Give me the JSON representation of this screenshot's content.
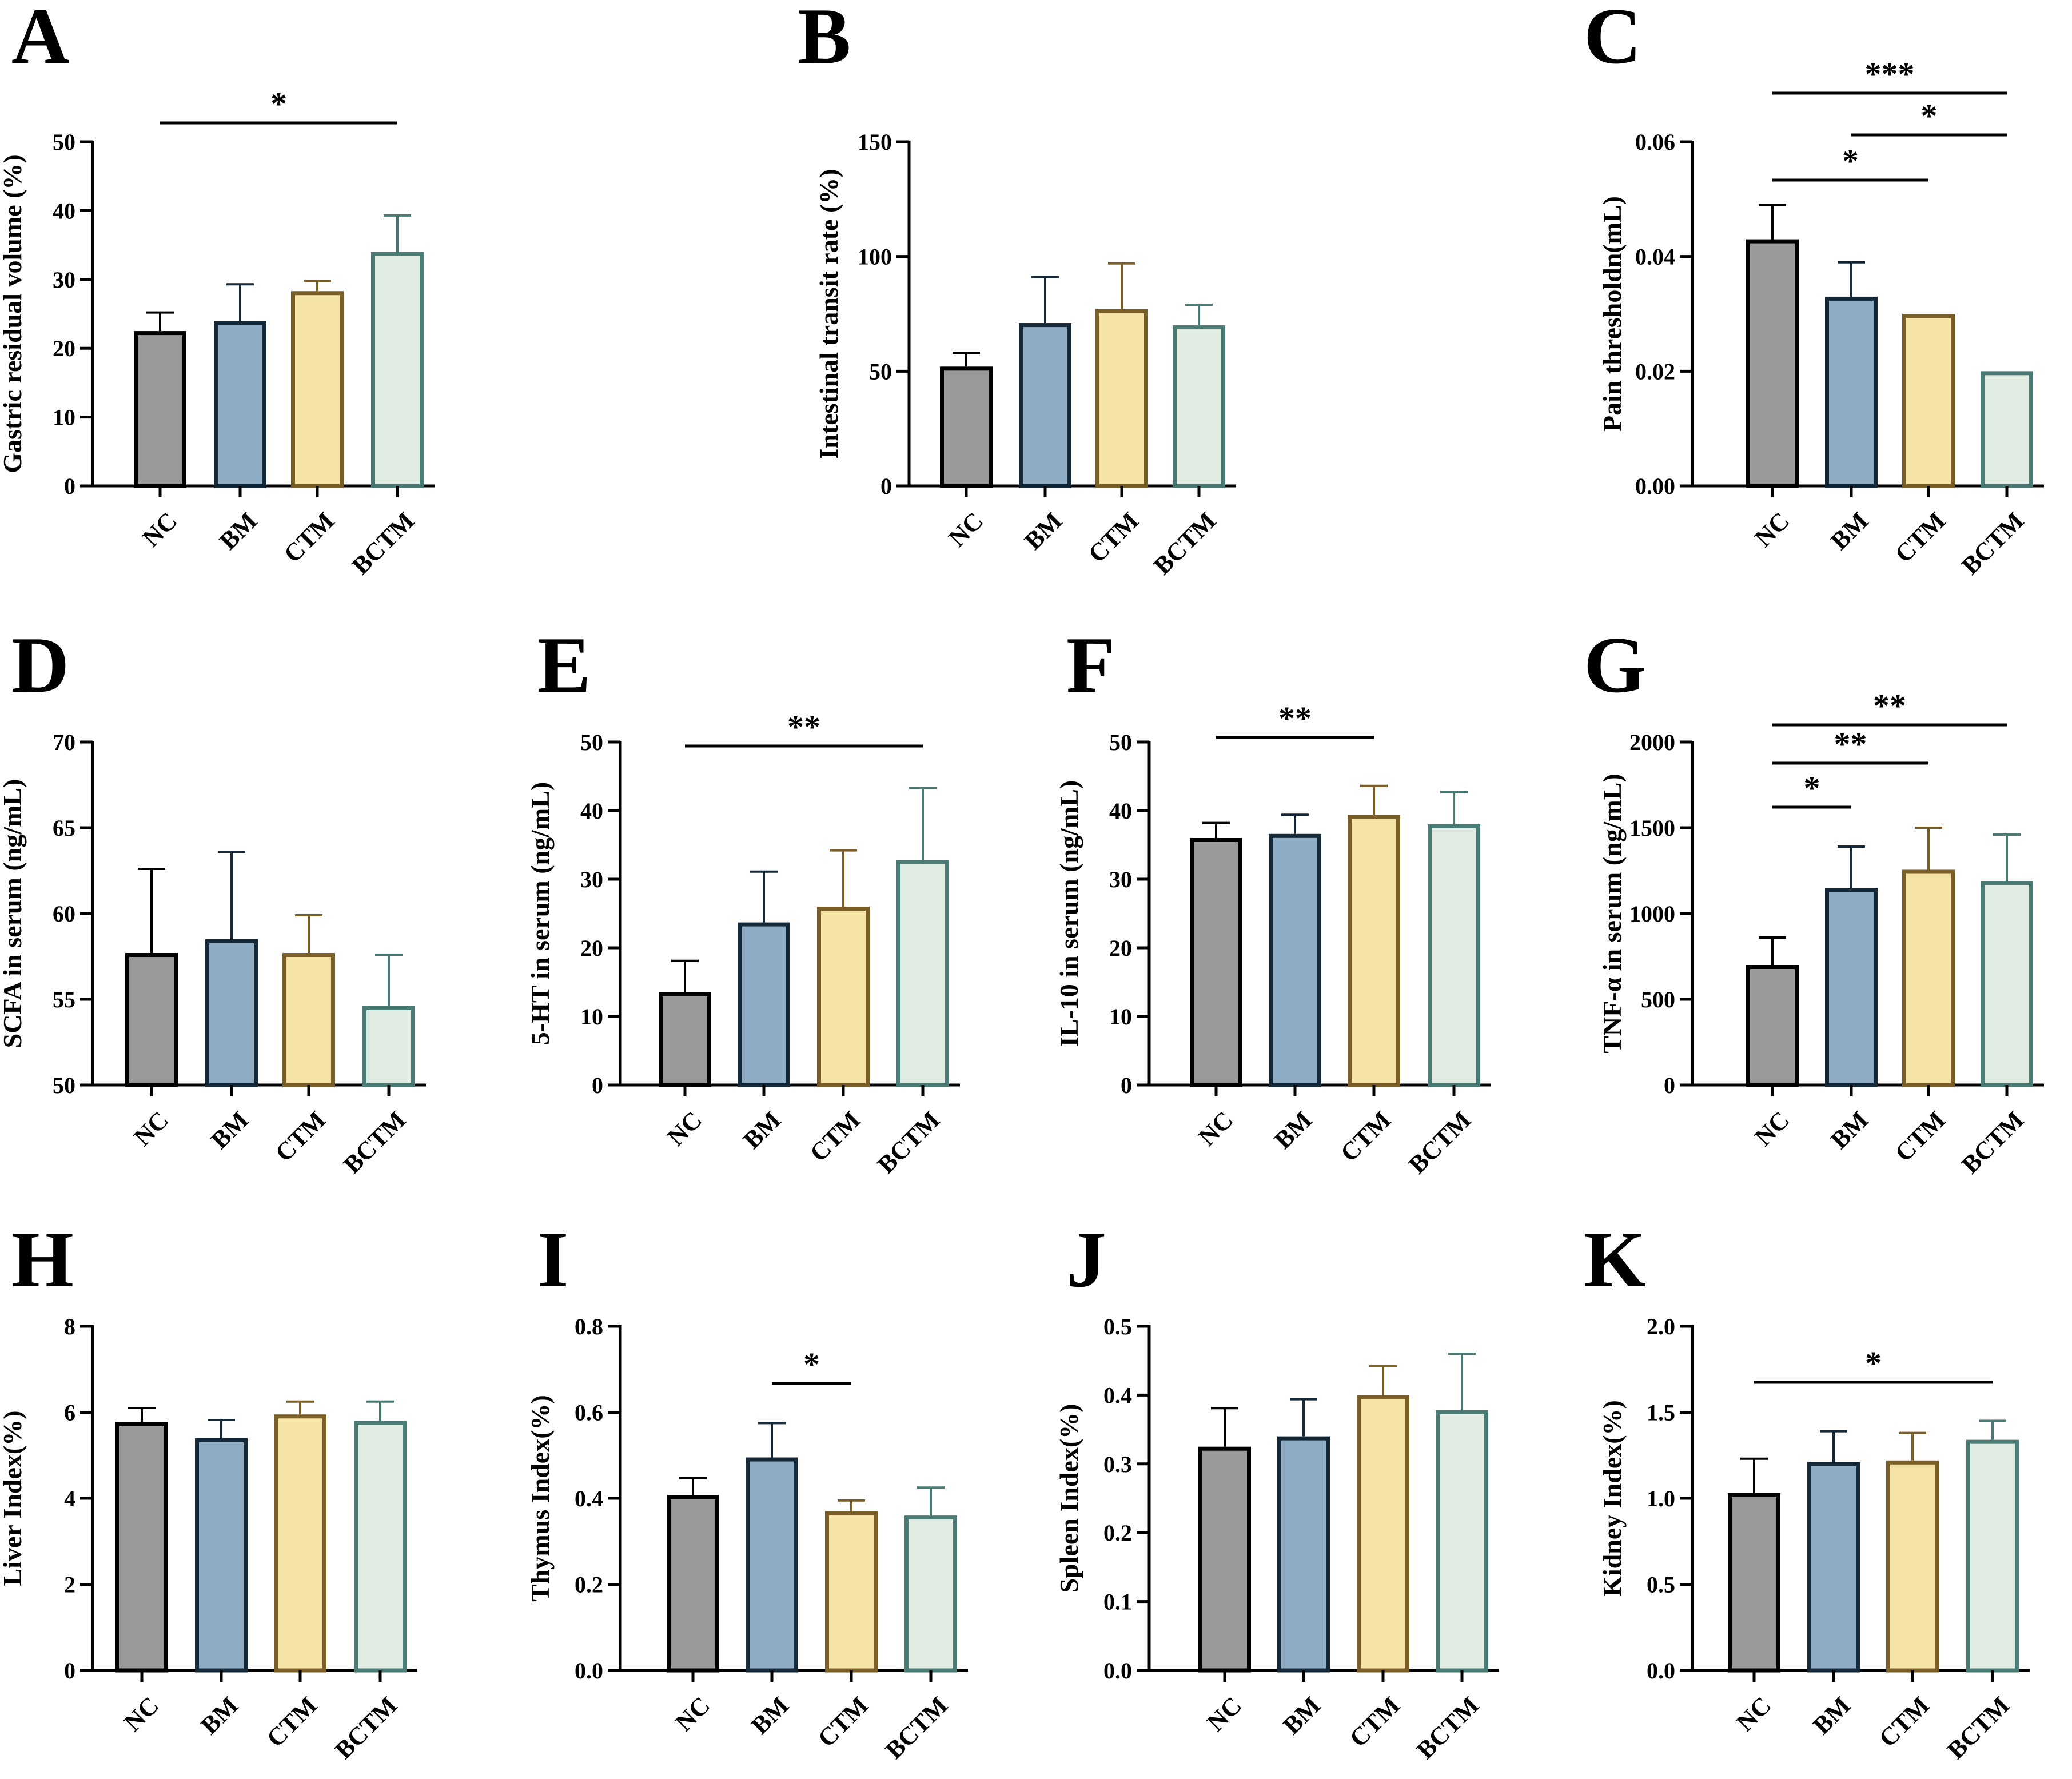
{
  "colors": {
    "fills": [
      "#999999",
      "#8eacc4",
      "#f6e3a6",
      "#e1ede3"
    ],
    "strokes": [
      "#000000",
      "#142838",
      "#7a5e28",
      "#4a7a74"
    ]
  },
  "chart_data": [
    {
      "panel": "A",
      "type": "bar",
      "title": "",
      "ylabel": "Gastric residual volume (%)",
      "categories": [
        "NC",
        "BM",
        "CTM",
        "BCTM"
      ],
      "values": [
        22.5,
        24,
        28.3,
        34
      ],
      "errors": [
        2.7,
        5.3,
        1.5,
        5.3
      ],
      "ylim": [
        0,
        50
      ],
      "yticks": [
        "0",
        "10",
        "20",
        "30",
        "40",
        "50"
      ],
      "significance": [
        {
          "from": 0,
          "to": 3,
          "label": "*"
        }
      ]
    },
    {
      "panel": "B",
      "type": "bar",
      "title": "",
      "ylabel": "Intestinal transit rate (%)",
      "categories": [
        "NC",
        "BM",
        "CTM",
        "BCTM"
      ],
      "values": [
        52,
        71,
        77,
        70
      ],
      "errors": [
        6,
        20,
        20,
        9
      ],
      "ylim": [
        0,
        150
      ],
      "yticks": [
        "0",
        "50",
        "100",
        "150"
      ],
      "significance": []
    },
    {
      "panel": "C",
      "type": "bar",
      "title": "",
      "ylabel": "Pain thresholdn(mL)",
      "categories": [
        "NC",
        "BM",
        "CTM",
        "BCTM"
      ],
      "values": [
        0.043,
        0.033,
        0.03,
        0.02
      ],
      "errors": [
        0.006,
        0.006,
        0,
        0
      ],
      "ylim": [
        0,
        0.06
      ],
      "yticks": [
        "0.00",
        "0.02",
        "0.04",
        "0.06"
      ],
      "significance": [
        {
          "from": 0,
          "to": 3,
          "label": "***"
        },
        {
          "from": 1,
          "to": 3,
          "label": "*"
        },
        {
          "from": 0,
          "to": 2,
          "label": "*"
        }
      ]
    },
    {
      "panel": "D",
      "type": "bar",
      "title": "",
      "ylabel": "SCFA in serum (ng/mL)",
      "categories": [
        "NC",
        "BM",
        "CTM",
        "BCTM"
      ],
      "values": [
        57.7,
        58.5,
        57.7,
        54.6
      ],
      "errors": [
        4.9,
        5.1,
        2.2,
        3
      ],
      "ylim": [
        50,
        70
      ],
      "yticks": [
        "50",
        "55",
        "60",
        "65",
        "70"
      ],
      "significance": []
    },
    {
      "panel": "E",
      "type": "bar",
      "title": "",
      "ylabel": "5-HT in serum (ng/mL)",
      "categories": [
        "NC",
        "BM",
        "CTM",
        "BCTM"
      ],
      "values": [
        13.5,
        23.7,
        26,
        32.8
      ],
      "errors": [
        4.6,
        7.4,
        8.2,
        10.5
      ],
      "ylim": [
        0,
        50
      ],
      "yticks": [
        "0",
        "10",
        "20",
        "30",
        "40",
        "50"
      ],
      "significance": [
        {
          "from": 0,
          "to": 3,
          "label": "**"
        }
      ]
    },
    {
      "panel": "F",
      "type": "bar",
      "title": "",
      "ylabel": "IL-10 in serum (ng/mL)",
      "categories": [
        "NC",
        "BM",
        "CTM",
        "BCTM"
      ],
      "values": [
        36,
        36.6,
        39.4,
        38
      ],
      "errors": [
        2.2,
        2.8,
        4.2,
        4.7
      ],
      "ylim": [
        0,
        50
      ],
      "yticks": [
        "0",
        "10",
        "20",
        "30",
        "40",
        "50"
      ],
      "significance": [
        {
          "from": 0,
          "to": 2,
          "label": "**"
        }
      ]
    },
    {
      "panel": "G",
      "type": "bar",
      "title": "",
      "ylabel": "TNF-α in serum (ng/mL)",
      "categories": [
        "NC",
        "BM",
        "CTM",
        "BCTM"
      ],
      "values": [
        700,
        1150,
        1255,
        1190
      ],
      "errors": [
        160,
        240,
        245,
        270
      ],
      "ylim": [
        0,
        2000
      ],
      "yticks": [
        "0",
        "500",
        "1000",
        "1500",
        "2000"
      ],
      "significance": [
        {
          "from": 0,
          "to": 3,
          "label": "**"
        },
        {
          "from": 0,
          "to": 2,
          "label": "**"
        },
        {
          "from": 0,
          "to": 1,
          "label": "*"
        }
      ]
    },
    {
      "panel": "H",
      "type": "bar",
      "title": "",
      "ylabel": "Liver Index(%)",
      "categories": [
        "NC",
        "BM",
        "CTM",
        "BCTM"
      ],
      "values": [
        5.78,
        5.4,
        5.95,
        5.8
      ],
      "errors": [
        0.32,
        0.42,
        0.3,
        0.45
      ],
      "ylim": [
        0,
        8
      ],
      "yticks": [
        "0",
        "2",
        "4",
        "6",
        "8"
      ],
      "significance": []
    },
    {
      "panel": "I",
      "type": "bar",
      "title": "",
      "ylabel": "Thymus Index(%)",
      "categories": [
        "NC",
        "BM",
        "CTM",
        "BCTM"
      ],
      "values": [
        0.407,
        0.495,
        0.37,
        0.36
      ],
      "errors": [
        0.04,
        0.08,
        0.025,
        0.065
      ],
      "ylim": [
        0,
        0.8
      ],
      "yticks": [
        "0.0",
        "0.2",
        "0.4",
        "0.6",
        "0.8"
      ],
      "significance": [
        {
          "from": 1,
          "to": 2,
          "label": "*"
        }
      ]
    },
    {
      "panel": "J",
      "type": "bar",
      "title": "",
      "ylabel": "Spleen Index(%)",
      "categories": [
        "NC",
        "BM",
        "CTM",
        "BCTM"
      ],
      "values": [
        0.325,
        0.34,
        0.4,
        0.378
      ],
      "errors": [
        0.056,
        0.054,
        0.042,
        0.082
      ],
      "ylim": [
        0,
        0.5
      ],
      "yticks": [
        "0.0",
        "0.1",
        "0.2",
        "0.3",
        "0.4",
        "0.5"
      ],
      "significance": []
    },
    {
      "panel": "K",
      "type": "bar",
      "title": "",
      "ylabel": "Kidney Index(%)",
      "categories": [
        "NC",
        "BM",
        "CTM",
        "BCTM"
      ],
      "values": [
        1.03,
        1.21,
        1.22,
        1.34
      ],
      "errors": [
        0.2,
        0.18,
        0.16,
        0.11
      ],
      "ylim": [
        0,
        2.0
      ],
      "yticks": [
        "0.0",
        "0.5",
        "1.0",
        "1.5",
        "2.0"
      ],
      "significance": [
        {
          "from": 0,
          "to": 3,
          "label": "*"
        }
      ]
    }
  ]
}
